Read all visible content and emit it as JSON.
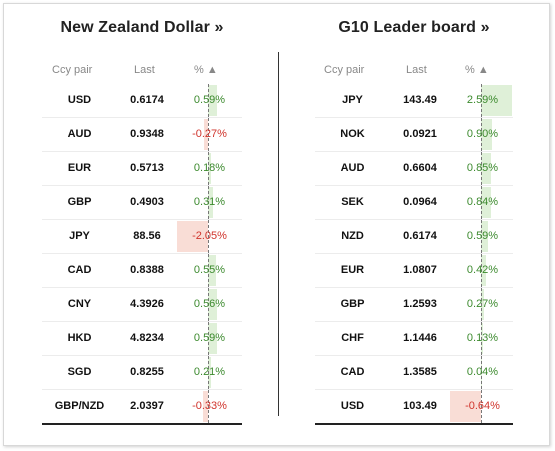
{
  "left_panel": {
    "title": "New Zealand Dollar »",
    "headers": {
      "pair": "Ccy pair",
      "last": "Last",
      "pct": "% ▲"
    },
    "rows": [
      {
        "pair": "USD",
        "last": "0.6174",
        "pct_label": "0.59%",
        "pct": 0.59
      },
      {
        "pair": "AUD",
        "last": "0.9348",
        "pct_label": "-0.27%",
        "pct": -0.27
      },
      {
        "pair": "EUR",
        "last": "0.5713",
        "pct_label": "0.18%",
        "pct": 0.18
      },
      {
        "pair": "GBP",
        "last": "0.4903",
        "pct_label": "0.31%",
        "pct": 0.31
      },
      {
        "pair": "JPY",
        "last": "88.56",
        "pct_label": "-2.05%",
        "pct": -2.05
      },
      {
        "pair": "CAD",
        "last": "0.8388",
        "pct_label": "0.55%",
        "pct": 0.55
      },
      {
        "pair": "CNY",
        "last": "4.3926",
        "pct_label": "0.56%",
        "pct": 0.56
      },
      {
        "pair": "HKD",
        "last": "4.8234",
        "pct_label": "0.59%",
        "pct": 0.59
      },
      {
        "pair": "SGD",
        "last": "0.8255",
        "pct_label": "0.21%",
        "pct": 0.21
      },
      {
        "pair": "GBP/NZD",
        "last": "2.0397",
        "pct_label": "-0.33%",
        "pct": -0.33
      }
    ]
  },
  "right_panel": {
    "title": "G10 Leader board »",
    "headers": {
      "pair": "Ccy pair",
      "last": "Last",
      "pct": "% ▲"
    },
    "rows": [
      {
        "pair": "JPY",
        "last": "143.49",
        "pct_label": "2.59%",
        "pct": 2.59
      },
      {
        "pair": "NOK",
        "last": "0.0921",
        "pct_label": "0.90%",
        "pct": 0.9
      },
      {
        "pair": "AUD",
        "last": "0.6604",
        "pct_label": "0.85%",
        "pct": 0.85
      },
      {
        "pair": "SEK",
        "last": "0.0964",
        "pct_label": "0.84%",
        "pct": 0.84
      },
      {
        "pair": "NZD",
        "last": "0.6174",
        "pct_label": "0.59%",
        "pct": 0.59
      },
      {
        "pair": "EUR",
        "last": "1.0807",
        "pct_label": "0.42%",
        "pct": 0.42
      },
      {
        "pair": "GBP",
        "last": "1.2593",
        "pct_label": "0.27%",
        "pct": 0.27
      },
      {
        "pair": "CHF",
        "last": "1.1446",
        "pct_label": "0.13%",
        "pct": 0.13
      },
      {
        "pair": "CAD",
        "last": "1.3585",
        "pct_label": "0.04%",
        "pct": 0.04
      },
      {
        "pair": "USD",
        "last": "103.49",
        "pct_label": "-0.64%",
        "pct": -0.64
      }
    ]
  },
  "colors": {
    "positive_text": "#3c8a2e",
    "negative_text": "#d0342c",
    "positive_bar": "#dff0d8",
    "negative_bar": "#f9ddd6"
  }
}
